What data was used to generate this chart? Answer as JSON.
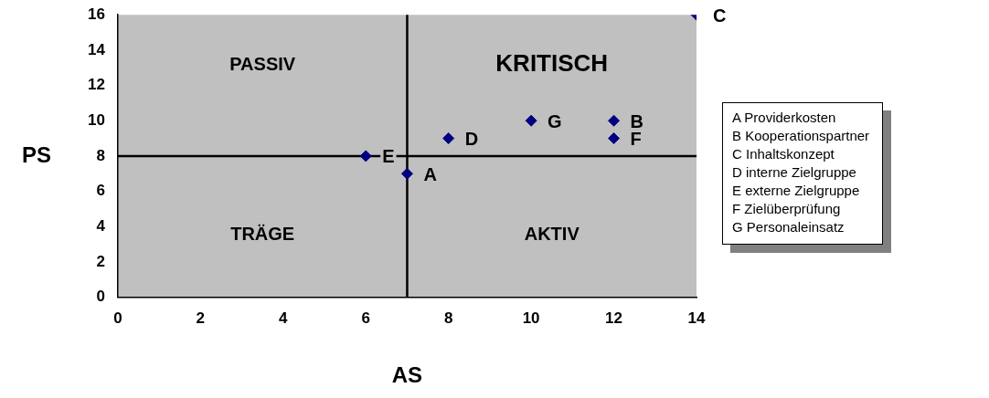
{
  "chart_data": {
    "type": "scatter",
    "xlabel": "AS",
    "ylabel": "PS",
    "series": [
      {
        "color": "#000080",
        "x": [
          7,
          12,
          14,
          8,
          6,
          12,
          10
        ],
        "values": [
          7,
          10,
          16,
          9,
          8,
          9,
          10
        ],
        "value_labels": [
          "A",
          "B",
          "C",
          "D",
          "E",
          "F",
          "G"
        ]
      }
    ],
    "marker": "diamond",
    "grid": false,
    "legend": false,
    "xlim": [
      0,
      14
    ],
    "xticks": [
      0,
      2,
      4,
      6,
      8,
      10,
      12,
      14
    ],
    "ylim": [
      0,
      16
    ],
    "yticks": [
      0,
      2,
      4,
      6,
      8,
      10,
      12,
      14,
      16
    ],
    "ref_lines": [
      {
        "axis": "x",
        "value": 7,
        "color": "#000000"
      },
      {
        "axis": "y",
        "value": 8,
        "color": "#000000"
      }
    ],
    "annotations": [
      "PASSIV",
      "KRITISCH",
      "TRÄGE",
      "AKTIV",
      "A Providerkosten",
      "B Kooperationspartner",
      "C Inhaltskonzept",
      "D interne Zielgruppe",
      "E externe Zielgruppe",
      "F Zielüberprüfung",
      "G Personaleinsatz"
    ]
  }
}
